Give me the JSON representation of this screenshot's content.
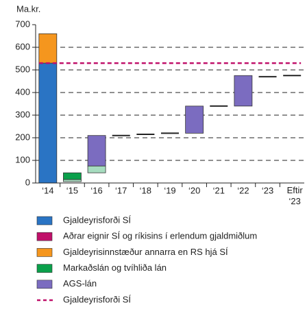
{
  "chart_data": {
    "type": "floating_bar",
    "y_label": "Ma.kr.",
    "categories": [
      "‘14",
      "‘15",
      "‘16",
      "‘17",
      "‘18",
      "‘19",
      "‘20",
      "‘21",
      "‘22",
      "‘23",
      "Eftir ‘23"
    ],
    "ylim": [
      0,
      700
    ],
    "yticks": [
      0,
      100,
      200,
      300,
      400,
      500,
      600,
      700
    ],
    "grid": true,
    "series": [
      {
        "name": "Gjaldeyrisforði SÍ",
        "color": "#2a74c4",
        "values": [
          [
            0,
            530
          ],
          null,
          null,
          null,
          null,
          null,
          null,
          null,
          null,
          null,
          null
        ]
      },
      {
        "name": "Aðrar eignir SÍ og ríkisins í erlendum gjaldmiðlum",
        "color": "#c0106a",
        "values": [
          null,
          null,
          null,
          null,
          null,
          null,
          null,
          null,
          null,
          null,
          null
        ]
      },
      {
        "name": "Gjaldeyrisinnstæður annarra en RS hjá SÍ",
        "color": "#f5961e",
        "values": [
          [
            530,
            660
          ],
          null,
          null,
          null,
          null,
          null,
          null,
          null,
          null,
          null,
          null
        ]
      },
      {
        "name": "Markaðslán og tvíhliða lán",
        "color": "#0aa04b",
        "values": [
          null,
          [
            15,
            45
          ],
          null,
          null,
          null,
          null,
          null,
          null,
          null,
          null,
          null
        ]
      },
      {
        "name": "AGS-lán",
        "color": "#7b6cc0",
        "values": [
          null,
          null,
          [
            75,
            210
          ],
          null,
          null,
          null,
          [
            220,
            340
          ],
          null,
          [
            340,
            475
          ],
          null,
          null
        ]
      },
      {
        "name": "Gjaldeyrisforði SÍ",
        "color": "#c0106a",
        "line": "dashed",
        "values": [
          530,
          530,
          530,
          530,
          530,
          530,
          530,
          530,
          530,
          530,
          530
        ]
      }
    ],
    "extra_segments": {
      "color": "#a6dcbf",
      "values": [
        null,
        [
          6,
          15
        ],
        [
          45,
          75
        ],
        null,
        null,
        null,
        null,
        null,
        null,
        null,
        null
      ]
    },
    "level_markers": {
      "color": "#222",
      "values": [
        null,
        null,
        null,
        210,
        215,
        220,
        null,
        340,
        null,
        470,
        475
      ]
    }
  }
}
